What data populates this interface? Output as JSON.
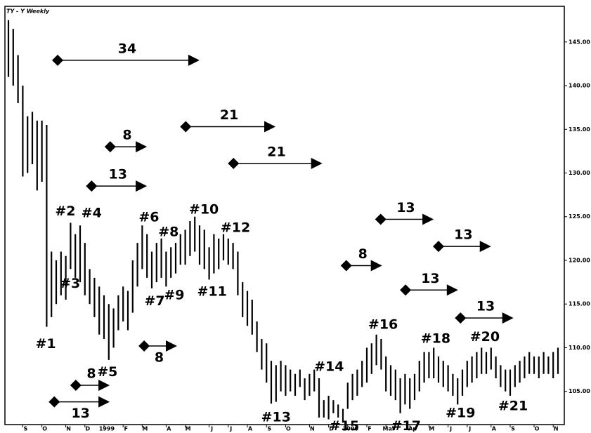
{
  "chart_data": {
    "type": "ohlc",
    "title": "TY - Y Weekly",
    "color": "#000000",
    "categories": [
      null,
      null,
      null,
      "S",
      null,
      null,
      null,
      "O",
      null,
      null,
      null,
      null,
      "N",
      null,
      null,
      null,
      "D",
      null,
      null,
      null,
      "1999",
      null,
      null,
      null,
      "F",
      null,
      null,
      null,
      "M",
      null,
      null,
      null,
      null,
      "A",
      null,
      null,
      null,
      "M",
      null,
      null,
      null,
      null,
      "J",
      null,
      null,
      null,
      "J",
      null,
      null,
      null,
      "A",
      null,
      null,
      null,
      "S",
      null,
      null,
      null,
      "O",
      null,
      null,
      null,
      null,
      "N",
      null,
      null,
      null,
      "D",
      null,
      null,
      null,
      "2000",
      null,
      null,
      null,
      "F",
      null,
      null,
      null,
      "Mar",
      null,
      null,
      null,
      null,
      "Ap",
      null,
      null,
      null,
      "M",
      null,
      null,
      null,
      "J",
      null,
      null,
      null,
      "J",
      null,
      null,
      null,
      null,
      "A",
      null,
      null,
      null,
      "S",
      null,
      null,
      null,
      null,
      "O",
      null,
      null,
      null,
      "N",
      null
    ],
    "highs": [
      147.5,
      146.5,
      143.5,
      140,
      136.5,
      137,
      136,
      136,
      135.5,
      121,
      120,
      121,
      120.5,
      124.3,
      123,
      124,
      122,
      119,
      118,
      117,
      116,
      115,
      114.5,
      116,
      117,
      116.5,
      120,
      122,
      124,
      123,
      121,
      122,
      122.5,
      121,
      121.5,
      122,
      123,
      123.5,
      124.5,
      125,
      124,
      123.5,
      121.5,
      123,
      122.5,
      123,
      122.5,
      122,
      121,
      117.5,
      116.5,
      115.5,
      113,
      111,
      110.5,
      108.5,
      108,
      108.5,
      108,
      107.5,
      107,
      107.5,
      106.5,
      107,
      107.5,
      106.5,
      104,
      104.5,
      104,
      103.5,
      103,
      106,
      107,
      107.5,
      108.5,
      110,
      110.5,
      111.5,
      111,
      109,
      108,
      107.5,
      106.5,
      107,
      106.5,
      107,
      108.5,
      109.5,
      109.5,
      110,
      109,
      108.5,
      108,
      107,
      106.5,
      107.5,
      108.5,
      109,
      109.5,
      110,
      109.5,
      110,
      109,
      108,
      107.5,
      107.5,
      108,
      108.5,
      109,
      109.5,
      109,
      109,
      109.5,
      109,
      109.5,
      110
    ],
    "lows": [
      141,
      140,
      138,
      129.6,
      130,
      131,
      128,
      129,
      112.4,
      113.5,
      115,
      116,
      115.5,
      119,
      118,
      117.5,
      116,
      115,
      113.5,
      111.5,
      111,
      108.6,
      110,
      112,
      113,
      112,
      114,
      117,
      119,
      118,
      116.8,
      117.5,
      118,
      117,
      118,
      118.5,
      119.5,
      119.5,
      120.5,
      121,
      119.5,
      119,
      117.8,
      118.5,
      119,
      120,
      119.5,
      119,
      116,
      113.5,
      112.5,
      111.5,
      109.5,
      107.5,
      106,
      103.6,
      103.8,
      105,
      104.5,
      105,
      104.5,
      105.5,
      104,
      104.5,
      105,
      102,
      102,
      101.8,
      102.5,
      102,
      101.6,
      103,
      104,
      104.5,
      105.5,
      106,
      107,
      108,
      107.5,
      105,
      104.5,
      104,
      102.5,
      103.5,
      103,
      104,
      105,
      106,
      106.5,
      106.5,
      106,
      105.5,
      105,
      104.5,
      103.5,
      104.5,
      105.5,
      106,
      106.5,
      107,
      107,
      107.5,
      106.5,
      105.5,
      105,
      104.5,
      105.5,
      106,
      106.5,
      107,
      107,
      106.5,
      107,
      107,
      106.5,
      107
    ],
    "ylim": [
      101.2,
      149
    ],
    "yticks": [
      {
        "value": 105,
        "label": "105.00"
      },
      {
        "value": 110,
        "label": "110.00"
      },
      {
        "value": 115,
        "label": "115.00"
      },
      {
        "value": 120,
        "label": "120.00"
      },
      {
        "value": 125,
        "label": "125.00"
      },
      {
        "value": 130,
        "label": "130.00"
      },
      {
        "value": 135,
        "label": "135.00"
      },
      {
        "value": 140,
        "label": "140.00"
      },
      {
        "value": 145,
        "label": "145.00"
      }
    ],
    "arrows": [
      {
        "label": "34",
        "x": 10.3,
        "x2": 39.4,
        "y": 142.9,
        "label_position": "above"
      },
      {
        "label": "8",
        "x": 21.3,
        "x2": 28.4,
        "y": 133.0,
        "label_position": "above"
      },
      {
        "label": "13",
        "x": 17.4,
        "x2": 28.4,
        "y": 128.5,
        "label_position": "above"
      },
      {
        "label": "21",
        "x": 37.1,
        "x2": 55.3,
        "y": 135.3,
        "label_position": "above"
      },
      {
        "label": "21",
        "x": 47.1,
        "x2": 65.1,
        "y": 131.1,
        "label_position": "above"
      },
      {
        "label": "13",
        "x": 77.9,
        "x2": 88.4,
        "y": 124.7,
        "label_position": "above"
      },
      {
        "label": "13",
        "x": 90.0,
        "x2": 100.4,
        "y": 121.6,
        "label_position": "above"
      },
      {
        "label": "8",
        "x": 70.7,
        "x2": 77.6,
        "y": 119.4,
        "label_position": "above"
      },
      {
        "label": "13",
        "x": 83.1,
        "x2": 93.5,
        "y": 116.6,
        "label_position": "above"
      },
      {
        "label": "13",
        "x": 94.6,
        "x2": 105.1,
        "y": 113.4,
        "label_position": "above"
      },
      {
        "label": "8",
        "x": 28.4,
        "x2": 34.7,
        "y": 110.2,
        "label_position": "below"
      },
      {
        "label": "8",
        "x": 14.1,
        "x2": 20.6,
        "y": 105.7,
        "label_position": "above"
      },
      {
        "label": "13",
        "x": 9.6,
        "x2": 20.6,
        "y": 103.8,
        "label_position": "below"
      }
    ],
    "pivots": [
      {
        "label": "#1",
        "x": 7.8,
        "y": 110.4
      },
      {
        "label": "#2",
        "x": 11.9,
        "y": 125.6
      },
      {
        "label": "#3",
        "x": 12.9,
        "y": 117.3
      },
      {
        "label": "#4",
        "x": 17.4,
        "y": 125.4
      },
      {
        "label": "#5",
        "x": 20.7,
        "y": 107.2
      },
      {
        "label": "#6",
        "x": 29.4,
        "y": 124.9
      },
      {
        "label": "#7",
        "x": 30.6,
        "y": 115.3
      },
      {
        "label": "#8",
        "x": 33.5,
        "y": 123.2
      },
      {
        "label": "#9",
        "x": 34.7,
        "y": 116.0
      },
      {
        "label": "#10",
        "x": 40.9,
        "y": 125.8
      },
      {
        "label": "#11",
        "x": 42.6,
        "y": 116.4
      },
      {
        "label": "#12",
        "x": 47.5,
        "y": 123.7
      },
      {
        "label": "#13",
        "x": 56.0,
        "y": 102.0
      },
      {
        "label": "#14",
        "x": 67.1,
        "y": 107.8
      },
      {
        "label": "#15",
        "x": 70.3,
        "y": 101.0
      },
      {
        "label": "#16",
        "x": 78.4,
        "y": 112.6
      },
      {
        "label": "#17",
        "x": 83.2,
        "y": 101.0
      },
      {
        "label": "#18",
        "x": 89.4,
        "y": 111.0
      },
      {
        "label": "#19",
        "x": 94.6,
        "y": 102.5
      },
      {
        "label": "#20",
        "x": 99.7,
        "y": 111.2
      },
      {
        "label": "#21",
        "x": 105.6,
        "y": 103.3
      }
    ]
  }
}
